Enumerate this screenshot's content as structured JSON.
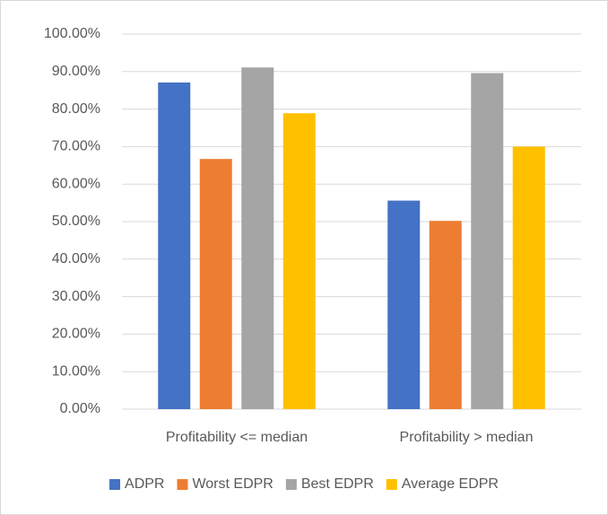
{
  "chart_data": {
    "type": "bar",
    "categories": [
      "Profitability <= median",
      "Profitability > median"
    ],
    "series": [
      {
        "name": "ADPR",
        "color": "#4472c4",
        "values": [
          87.1,
          55.6
        ]
      },
      {
        "name": "Worst EDPR",
        "color": "#ed7d31",
        "values": [
          66.7,
          50.2
        ]
      },
      {
        "name": "Best EDPR",
        "color": "#a5a5a5",
        "values": [
          91.1,
          89.6
        ]
      },
      {
        "name": "Average EDPR",
        "color": "#ffc000",
        "values": [
          78.9,
          70.0
        ]
      }
    ],
    "ylim": [
      0,
      100
    ],
    "yticks": [
      {
        "value": 0,
        "label": "0.00%"
      },
      {
        "value": 10,
        "label": "10.00%"
      },
      {
        "value": 20,
        "label": "20.00%"
      },
      {
        "value": 30,
        "label": "30.00%"
      },
      {
        "value": 40,
        "label": "40.00%"
      },
      {
        "value": 50,
        "label": "50.00%"
      },
      {
        "value": 60,
        "label": "60.00%"
      },
      {
        "value": 70,
        "label": "70.00%"
      },
      {
        "value": 80,
        "label": "80.00%"
      },
      {
        "value": 90,
        "label": "90.00%"
      },
      {
        "value": 100,
        "label": "100.00%"
      }
    ],
    "grid": true,
    "legend": "bottom"
  }
}
